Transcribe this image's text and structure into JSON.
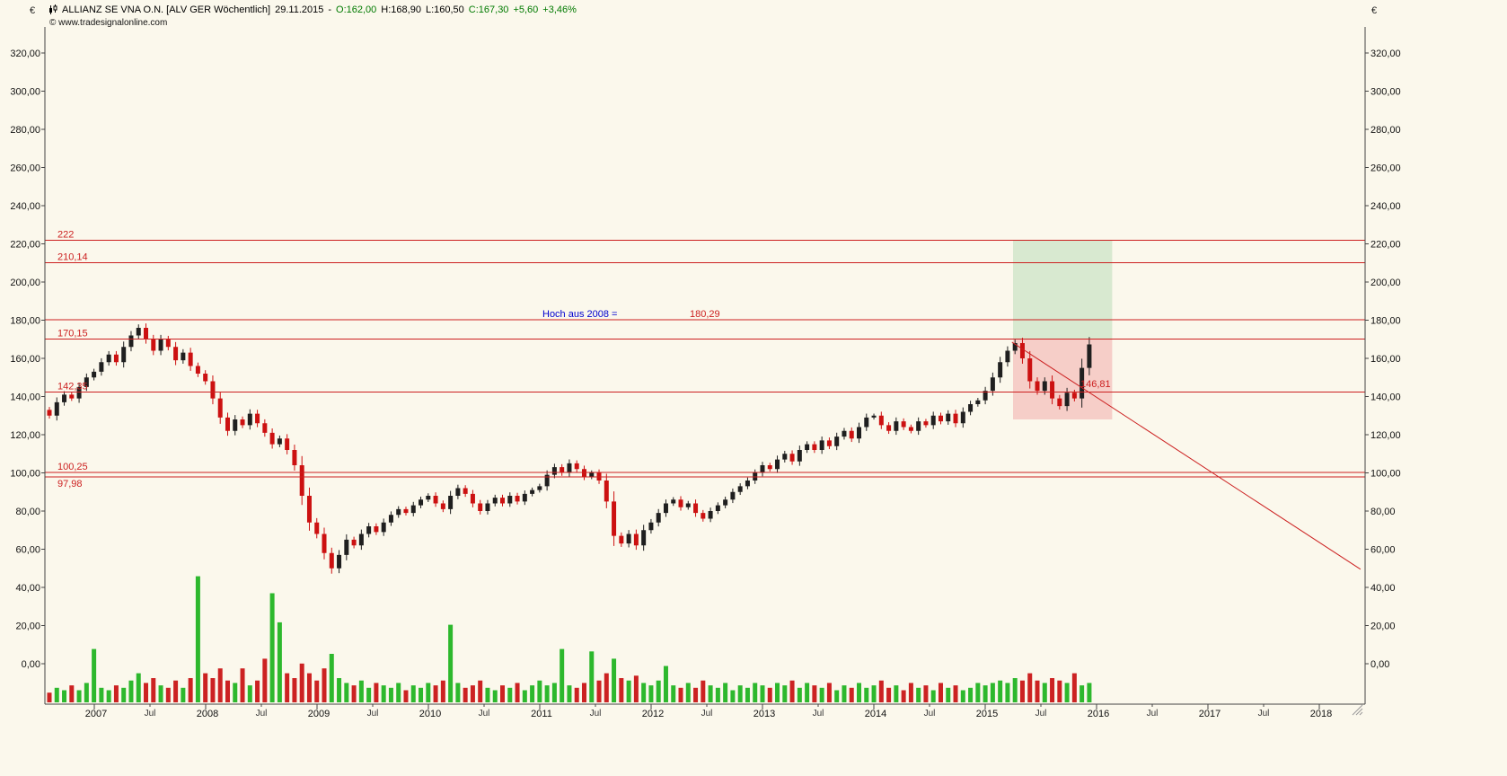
{
  "window": {
    "symbol_title": "ALLIANZ SE VNA O.N. [ALV GER Wöchentlich]",
    "date": "29.11.2015",
    "dash": "-",
    "open": "O:162,00",
    "high": "H:168,90",
    "low": "L:160,50",
    "close": "C:167,30",
    "change_abs": "+5,60",
    "change_pct": "+3,46%",
    "copyright": "© www.tradesignalonline.com"
  },
  "axes": {
    "currency_left": "€",
    "currency_right": "€",
    "y_tick_step": 20,
    "y_tick_labels": [
      "0,00",
      "20,00",
      "40,00",
      "60,00",
      "80,00",
      "100,00",
      "120,00",
      "140,00",
      "160,00",
      "180,00",
      "200,00",
      "220,00",
      "240,00",
      "260,00",
      "280,00",
      "300,00",
      "320,00"
    ],
    "x_years": [
      "2007",
      "2008",
      "2009",
      "2010",
      "2011",
      "2012",
      "2013",
      "2014",
      "2015",
      "2016",
      "2017",
      "2018"
    ],
    "month_label": "Jul"
  },
  "chart_data": {
    "type": "candlestick",
    "title": "ALLIANZ SE VNA O.N. weekly candlestick chart with volume",
    "timeframe": "weekly",
    "xlim_years": [
      2006.56,
      2018.41
    ],
    "ylim": [
      -21,
      333
    ],
    "x_start_year": 2006.53,
    "x_step_years": 0.0667,
    "closes": [
      133,
      130,
      137,
      141,
      139,
      145,
      150,
      153,
      158,
      162,
      158,
      166,
      172,
      176,
      170,
      164,
      170,
      166,
      159,
      163,
      156,
      152,
      148,
      139,
      129,
      122,
      128,
      125,
      131,
      126,
      121,
      115,
      118,
      112,
      104,
      88,
      74,
      68,
      58,
      50,
      57,
      65,
      62,
      68,
      72,
      69,
      74,
      78,
      81,
      79,
      83,
      86,
      88,
      84,
      81,
      88,
      92,
      89,
      84,
      80,
      84,
      87,
      84,
      88,
      85,
      89,
      91,
      93,
      99,
      103,
      100,
      105,
      102,
      98,
      100,
      96,
      85,
      67,
      63,
      68,
      62,
      70,
      74,
      79,
      84,
      86,
      82,
      84,
      79,
      76,
      80,
      83,
      86,
      90,
      93,
      96,
      100,
      104,
      102,
      107,
      110,
      106,
      112,
      115,
      112,
      117,
      114,
      119,
      122,
      118,
      124,
      129,
      130,
      125,
      122,
      127,
      124,
      122,
      127,
      125,
      130,
      127,
      131,
      126,
      132,
      136,
      138,
      143,
      150,
      158,
      164,
      168,
      160,
      148,
      143,
      148,
      139,
      135,
      142,
      139,
      155,
      167.3
    ],
    "volumes": [
      5,
      4,
      6,
      5,
      7,
      5,
      8,
      22,
      6,
      5,
      7,
      6,
      9,
      12,
      8,
      10,
      7,
      6,
      9,
      6,
      10,
      52,
      12,
      10,
      14,
      9,
      8,
      14,
      7,
      9,
      18,
      45,
      33,
      12,
      10,
      16,
      12,
      9,
      14,
      20,
      10,
      8,
      7,
      9,
      6,
      8,
      7,
      6,
      8,
      5,
      7,
      6,
      8,
      7,
      9,
      32,
      8,
      6,
      7,
      9,
      6,
      5,
      7,
      6,
      8,
      5,
      7,
      9,
      7,
      8,
      22,
      7,
      6,
      8,
      21,
      9,
      12,
      18,
      10,
      9,
      11,
      8,
      7,
      9,
      15,
      7,
      6,
      8,
      6,
      9,
      7,
      6,
      8,
      5,
      7,
      6,
      8,
      7,
      6,
      8,
      7,
      9,
      6,
      8,
      7,
      6,
      8,
      5,
      7,
      6,
      8,
      6,
      7,
      9,
      6,
      7,
      5,
      8,
      6,
      7,
      5,
      8,
      6,
      7,
      5,
      6,
      8,
      7,
      8,
      9,
      8,
      10,
      9,
      12,
      9,
      8,
      10,
      9,
      8,
      12,
      7,
      8
    ],
    "volume_up_overrides": [
      21,
      31,
      39,
      70,
      77
    ],
    "levels": [
      {
        "label": "222",
        "value": 222,
        "label_below": false
      },
      {
        "label": "210,14",
        "value": 210.14,
        "label_below": false
      },
      {
        "label": "",
        "value": 180.29,
        "label_below": false
      },
      {
        "label": "170,15",
        "value": 170.15,
        "label_below": false
      },
      {
        "label": "142,35",
        "value": 142.35,
        "label_below": false
      },
      {
        "label": "100,25",
        "value": 100.25,
        "label_below": false
      },
      {
        "label": "97,98",
        "value": 97.98,
        "label_below": true
      }
    ],
    "zones": [
      {
        "name": "target-zone-green",
        "x1": 2015.25,
        "x2": 2016.14,
        "y1": 170.15,
        "y2": 222,
        "color": "#d8e9d0"
      },
      {
        "name": "risk-zone-red",
        "x1": 2015.25,
        "x2": 2016.14,
        "y1": 128,
        "y2": 170.15,
        "color": "#f6cec8"
      }
    ],
    "trendline": {
      "x1": 2015.24,
      "y1": 168.5,
      "x2": 2018.37,
      "y2": 49.5
    },
    "annotations": [
      {
        "name": "hoch-2008-annotation",
        "text": "Hoch aus 2008 =",
        "color": "#0000d0",
        "x": 604,
        "y": 353
      },
      {
        "name": "hoch-2008-value",
        "text": "180,29",
        "color": "#cc2020",
        "x": 768,
        "y": 353
      },
      {
        "name": "trendline-price-marker",
        "text": "146,81",
        "color": "#cc2020",
        "x": 1203,
        "y": 431
      }
    ],
    "colors": {
      "background": "#fbf8ec",
      "candle_up": "#1f1f1f",
      "candle_down": "#cc1111",
      "volume_up": "#2db82d",
      "volume_down": "#cc2222",
      "level_line": "#cc2020",
      "axis": "#444444",
      "header_quote_green": "#007a00"
    }
  }
}
